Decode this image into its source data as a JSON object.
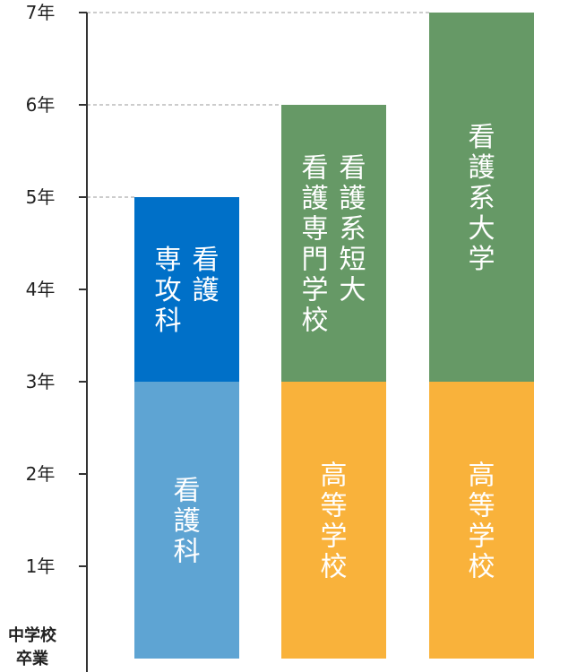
{
  "chart_data": {
    "type": "bar",
    "stacked": true,
    "y_unit": "years",
    "ylim": [
      0,
      7
    ],
    "y_ticks": [
      {
        "value": 1,
        "label": "1年"
      },
      {
        "value": 2,
        "label": "2年"
      },
      {
        "value": 3,
        "label": "3年"
      },
      {
        "value": 4,
        "label": "4年"
      },
      {
        "value": 5,
        "label": "5年"
      },
      {
        "value": 6,
        "label": "6年"
      },
      {
        "value": 7,
        "label": "7年"
      }
    ],
    "baseline_label": [
      "中学校",
      "卒業"
    ],
    "grid": false,
    "reference_lines": [
      5,
      6,
      7
    ],
    "bars": [
      {
        "segments": [
          {
            "start": 0,
            "end": 3,
            "label_columns": [
              "看護科"
            ],
            "color": "#5ea4d3"
          },
          {
            "start": 3,
            "end": 5,
            "label_columns": [
              "看護",
              "専攻科"
            ],
            "color": "#0070c8"
          }
        ]
      },
      {
        "segments": [
          {
            "start": 0,
            "end": 3,
            "label_columns": [
              "高等学校"
            ],
            "color": "#f9b23b"
          },
          {
            "start": 3,
            "end": 6,
            "label_columns": [
              "看護系短大",
              "看護専門学校"
            ],
            "color": "#669966"
          }
        ]
      },
      {
        "segments": [
          {
            "start": 0,
            "end": 3,
            "label_columns": [
              "高等学校"
            ],
            "color": "#f9b23b"
          },
          {
            "start": 3,
            "end": 7,
            "label_columns": [
              "看護系大学"
            ],
            "color": "#669966"
          }
        ]
      }
    ]
  }
}
